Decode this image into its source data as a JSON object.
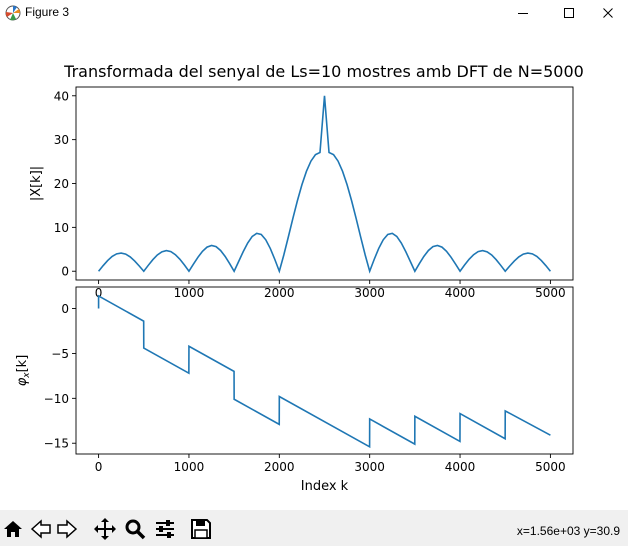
{
  "window": {
    "title": "Figure 3",
    "controls": [
      "minimize",
      "maximize",
      "close"
    ]
  },
  "figure": {
    "title": "Transformada del senyal de Ls=10 mostres amb DFT de N=5000"
  },
  "chart_data": [
    {
      "type": "line",
      "title": "Transformada del senyal de Ls=10 mostres amb DFT de N=5000",
      "xlabel": "",
      "ylabel": "|X[k]|",
      "xlim": [
        -250,
        5250
      ],
      "ylim": [
        -2,
        42
      ],
      "xticks": [
        "0",
        "1000",
        "2000",
        "3000",
        "4000",
        "5000"
      ],
      "yticks": [
        "0",
        "10",
        "20",
        "30",
        "40"
      ],
      "color": "#1f77b4",
      "series": [
        {
          "x": [
            0,
            50,
            100,
            150,
            200,
            250,
            300,
            350,
            400,
            450,
            500,
            550,
            600,
            650,
            700,
            750,
            800,
            850,
            900,
            950,
            1000,
            1050,
            1100,
            1150,
            1200,
            1250,
            1300,
            1350,
            1400,
            1450,
            1500,
            1550,
            1600,
            1650,
            1700,
            1750,
            1800,
            1850,
            1900,
            1950,
            2000,
            2050,
            2100,
            2150,
            2200,
            2250,
            2300,
            2350,
            2400,
            2450,
            2500,
            2550,
            2600,
            2650,
            2700,
            2750,
            2800,
            2850,
            2900,
            2950,
            3000,
            3050,
            3100,
            3150,
            3200,
            3250,
            3300,
            3350,
            3400,
            3450,
            3500,
            3550,
            3600,
            3650,
            3700,
            3750,
            3800,
            3850,
            3900,
            3950,
            4000,
            4050,
            4100,
            4150,
            4200,
            4250,
            4300,
            4350,
            4400,
            4450,
            4500,
            4550,
            4600,
            4650,
            4700,
            4750,
            4800,
            4850,
            4900,
            4950,
            5000
          ],
          "y": [
            0,
            1.27,
            2.43,
            3.37,
            3.96,
            4.14,
            3.9,
            3.26,
            2.32,
            1.19,
            0,
            1.35,
            2.63,
            3.7,
            4.43,
            4.7,
            4.47,
            3.77,
            2.72,
            1.41,
            0,
            1.63,
            3.2,
            4.55,
            5.5,
            5.88,
            5.61,
            4.73,
            3.39,
            1.75,
            0,
            2.22,
            4.44,
            6.43,
            7.93,
            8.63,
            8.39,
            7.17,
            5.2,
            2.7,
            0,
            3.73,
            7.83,
            12.03,
            16.07,
            19.72,
            22.78,
            25.11,
            26.58,
            27.06,
            40,
            27.06,
            26.58,
            25.11,
            22.78,
            19.72,
            16.07,
            12.03,
            7.83,
            3.73,
            0,
            2.7,
            5.2,
            7.17,
            8.39,
            8.63,
            7.93,
            6.43,
            4.44,
            2.22,
            0,
            1.75,
            3.39,
            4.73,
            5.61,
            5.88,
            5.5,
            4.55,
            3.2,
            1.63,
            0,
            1.41,
            2.72,
            3.77,
            4.47,
            4.7,
            4.43,
            3.7,
            2.63,
            1.35,
            0,
            1.19,
            2.32,
            3.26,
            3.9,
            4.14,
            3.96,
            3.37,
            2.43,
            1.27,
            0
          ]
        }
      ]
    },
    {
      "type": "line",
      "title": "",
      "xlabel": "Index k",
      "ylabel": "φx[k]",
      "xlim": [
        -250,
        5250
      ],
      "ylim": [
        -16.2,
        2.4
      ],
      "xticks": [
        "0",
        "1000",
        "2000",
        "3000",
        "4000",
        "5000"
      ],
      "yticks": [
        "0",
        "−5",
        "−10",
        "−15"
      ],
      "color": "#1f77b4",
      "series": [
        {
          "x": [
            0,
            0,
            499,
            500,
            999,
            1000,
            1499,
            1500,
            1999,
            2000,
            2999,
            3000,
            3499,
            3500,
            3999,
            4000,
            4499,
            4500,
            5000
          ],
          "y": [
            0,
            1.4,
            -1.4,
            -4.4,
            -7.2,
            -4.2,
            -7,
            -10.1,
            -12.9,
            -9.8,
            -15.4,
            -12.3,
            -15.1,
            -12,
            -14.8,
            -11.7,
            -14.5,
            -11.4,
            -14.1
          ]
        }
      ]
    }
  ],
  "toolbar": {
    "items": [
      {
        "name": "home-icon",
        "glyph": "⌂"
      },
      {
        "name": "back-icon",
        "glyph": "⇦"
      },
      {
        "name": "forward-icon",
        "glyph": "⇨"
      },
      {
        "name": "pan-icon",
        "glyph": "✥"
      },
      {
        "name": "zoom-icon",
        "glyph": "🔍"
      },
      {
        "name": "configure-subplots-icon",
        "glyph": "☰"
      },
      {
        "name": "save-icon",
        "glyph": "💾"
      }
    ],
    "coords": "x=1.56e+03 y=30.9"
  }
}
